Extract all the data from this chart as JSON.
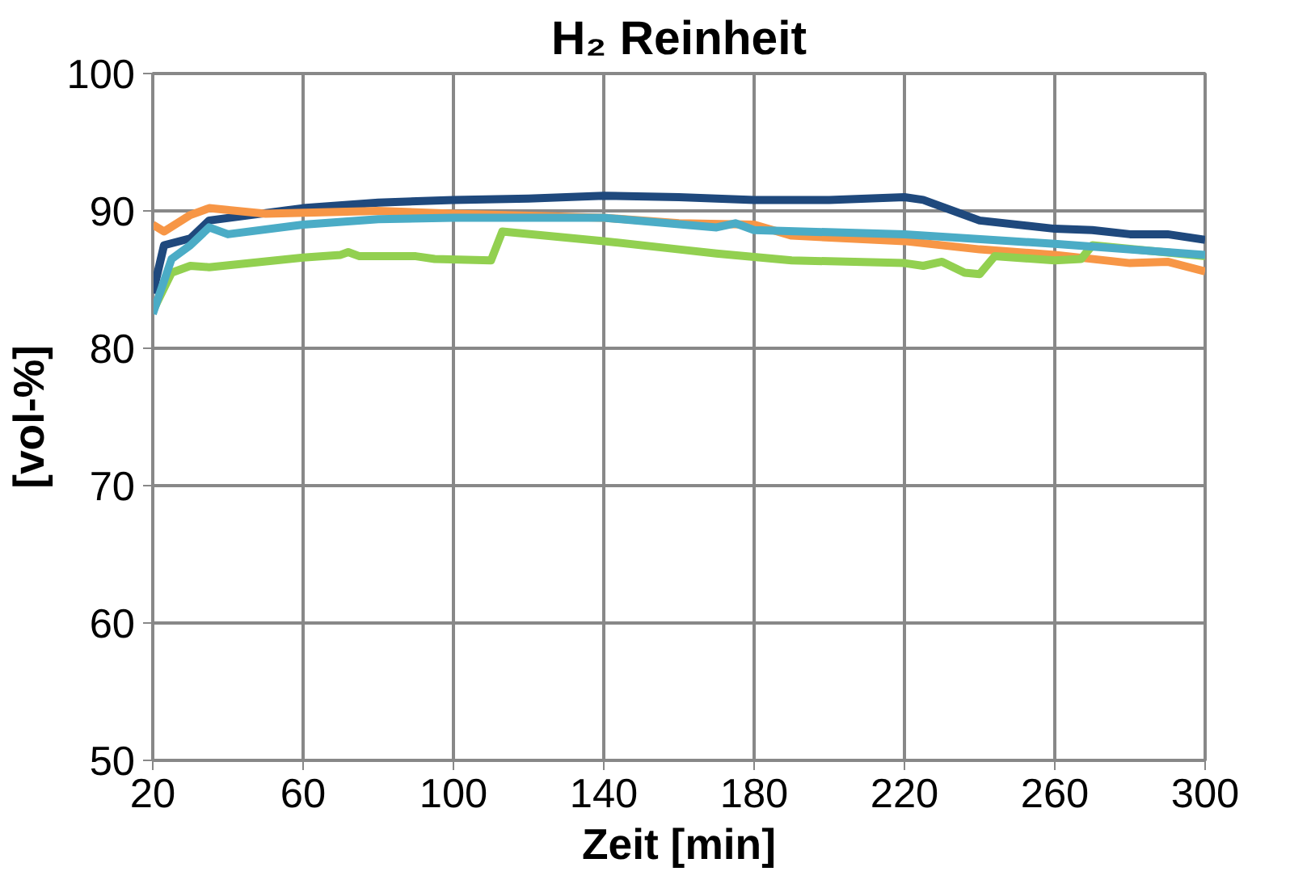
{
  "chart_data": {
    "type": "line",
    "title": "H₂ Reinheit",
    "xlabel": "Zeit [min]",
    "ylabel": "[vol-%]",
    "xlim": [
      20,
      300
    ],
    "xticks": [
      20,
      60,
      100,
      140,
      180,
      220,
      260,
      300
    ],
    "ylim": [
      50,
      100
    ],
    "yticks": [
      50,
      60,
      70,
      80,
      90,
      100
    ],
    "grid": true,
    "series": [
      {
        "color": "#1f497d",
        "x": [
          20,
          23,
          30,
          35,
          60,
          80,
          100,
          120,
          140,
          160,
          180,
          200,
          220,
          225,
          240,
          260,
          270,
          280,
          290,
          300
        ],
        "values": [
          84,
          87.5,
          88,
          89.3,
          90.2,
          90.6,
          90.8,
          90.9,
          91.1,
          91,
          90.8,
          90.8,
          91,
          90.8,
          89.3,
          88.7,
          88.6,
          88.3,
          88.3,
          87.9
        ]
      },
      {
        "color": "#f79646",
        "x": [
          20,
          23,
          30,
          35,
          50,
          80,
          100,
          140,
          160,
          180,
          190,
          220,
          240,
          260,
          280,
          290,
          300
        ],
        "values": [
          89,
          88.5,
          89.7,
          90.2,
          89.8,
          90,
          89.8,
          89.5,
          89.1,
          89,
          88.2,
          87.8,
          87.2,
          86.8,
          86.2,
          86.3,
          85.6
        ]
      },
      {
        "color": "#92d050",
        "x": [
          20,
          25,
          30,
          35,
          60,
          70,
          72,
          75,
          90,
          95,
          110,
          113,
          140,
          160,
          170,
          190,
          220,
          225,
          230,
          236,
          240,
          244,
          260,
          267,
          270,
          300
        ],
        "values": [
          82.7,
          85.5,
          86,
          85.9,
          86.6,
          86.8,
          87,
          86.7,
          86.7,
          86.5,
          86.4,
          88.5,
          87.8,
          87.2,
          86.9,
          86.4,
          86.2,
          86,
          86.3,
          85.5,
          85.4,
          86.7,
          86.4,
          86.5,
          87.5,
          86.7
        ]
      },
      {
        "color": "#4bacc6",
        "x": [
          20,
          25,
          30,
          35,
          40,
          60,
          80,
          100,
          140,
          170,
          175,
          180,
          220,
          260,
          300
        ],
        "values": [
          82.5,
          86.5,
          87.5,
          88.8,
          88.3,
          89,
          89.4,
          89.5,
          89.5,
          88.8,
          89.1,
          88.6,
          88.3,
          87.6,
          86.8
        ]
      }
    ]
  }
}
